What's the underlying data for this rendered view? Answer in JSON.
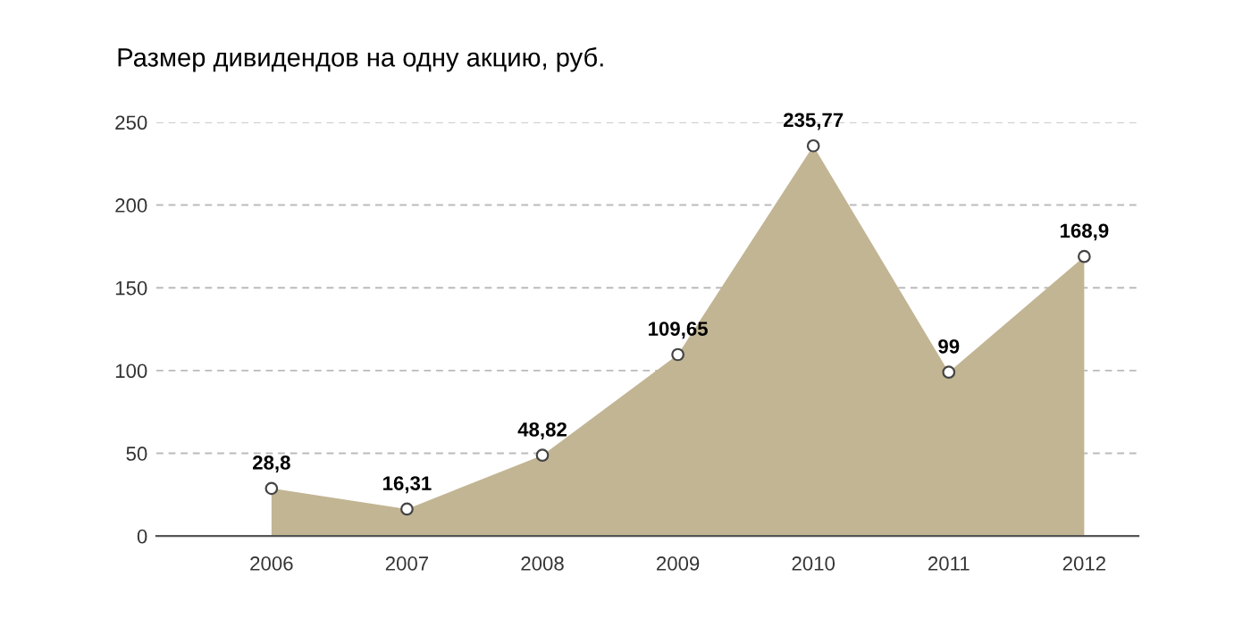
{
  "chart_data": {
    "type": "area",
    "title": "Размер дивидендов на одну акцию, руб.",
    "categories": [
      "2006",
      "2007",
      "2008",
      "2009",
      "2010",
      "2011",
      "2012"
    ],
    "series": [
      {
        "color": "#c2b593",
        "values": [
          28.8,
          16.31,
          48.82,
          109.65,
          235.77,
          99,
          168.9
        ],
        "value_labels": [
          "28,8",
          "16,31",
          "48,82",
          "109,65",
          "235,77",
          "99",
          "168,9"
        ]
      }
    ],
    "ylim": [
      0,
      250
    ],
    "yticks": [
      0,
      50,
      100,
      150,
      200,
      250
    ],
    "grid": "y",
    "marker": "circle"
  }
}
